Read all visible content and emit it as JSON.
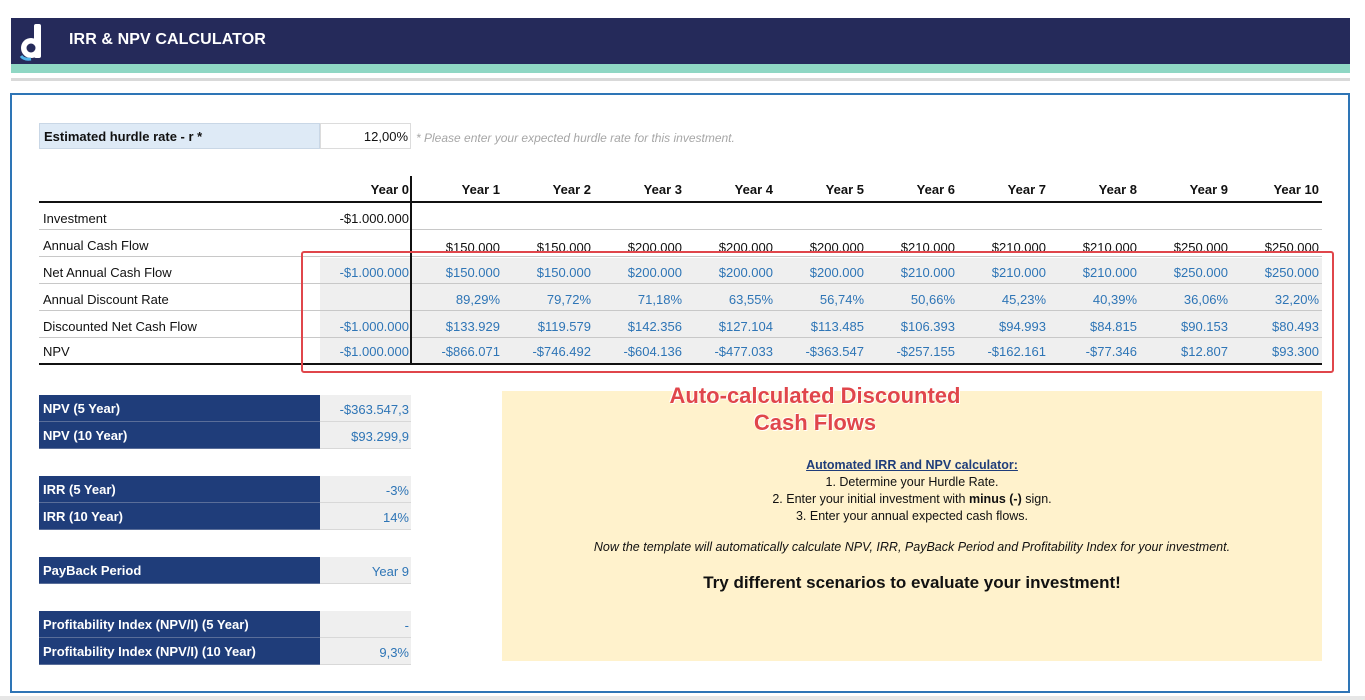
{
  "app": {
    "title": "IRR & NPV CALCULATOR",
    "logo_icon": "d-logo-icon"
  },
  "hurdle": {
    "label": "Estimated hurdle rate - r *",
    "value": "12,00%",
    "note": "* Please enter your expected hurdle rate for this investment."
  },
  "table": {
    "headers": [
      "Year 0",
      "Year 1",
      "Year 2",
      "Year 3",
      "Year 4",
      "Year 5",
      "Year 6",
      "Year 7",
      "Year 8",
      "Year 9",
      "Year 10"
    ],
    "rows": [
      {
        "label": "Investment",
        "values": [
          "-$1.000.000",
          "",
          "",
          "",
          "",
          "",
          "",
          "",
          "",
          "",
          ""
        ]
      },
      {
        "label": "Annual Cash Flow",
        "values": [
          "",
          "$150.000",
          "$150.000",
          "$200.000",
          "$200.000",
          "$200.000",
          "$210.000",
          "$210.000",
          "$210.000",
          "$250.000",
          "$250.000"
        ]
      },
      {
        "label": "Net Annual Cash Flow",
        "values": [
          "-$1.000.000",
          "$150.000",
          "$150.000",
          "$200.000",
          "$200.000",
          "$200.000",
          "$210.000",
          "$210.000",
          "$210.000",
          "$250.000",
          "$250.000"
        ]
      },
      {
        "label": "Annual Discount Rate",
        "values": [
          "",
          "89,29%",
          "79,72%",
          "71,18%",
          "63,55%",
          "56,74%",
          "50,66%",
          "45,23%",
          "40,39%",
          "36,06%",
          "32,20%"
        ]
      },
      {
        "label": "Discounted Net Cash Flow",
        "values": [
          "-$1.000.000",
          "$133.929",
          "$119.579",
          "$142.356",
          "$127.104",
          "$113.485",
          "$106.393",
          "$94.993",
          "$84.815",
          "$90.153",
          "$80.493"
        ]
      },
      {
        "label": "NPV",
        "values": [
          "-$1.000.000",
          "-$866.071",
          "-$746.492",
          "-$604.136",
          "-$477.033",
          "-$363.547",
          "-$257.155",
          "-$162.161",
          "-$77.346",
          "$12.807",
          "$93.300"
        ]
      }
    ]
  },
  "metrics": [
    {
      "label": "NPV (5 Year)",
      "value": "-$363.547,3"
    },
    {
      "label": "NPV (10 Year)",
      "value": "$93.299,9"
    },
    {
      "label": "IRR (5 Year)",
      "value": "-3%"
    },
    {
      "label": "IRR (10 Year)",
      "value": "14%"
    },
    {
      "label": "PayBack Period",
      "value": "Year 9"
    },
    {
      "label": "Profitability Index (NPV/I) (5 Year)",
      "value": "-"
    },
    {
      "label": "Profitability Index (NPV/I) (10 Year)",
      "value": "9,3%"
    }
  ],
  "annotation": {
    "line1": "Auto-calculated Discounted",
    "line2": "Cash Flows"
  },
  "instructions": {
    "title": "Automated IRR and NPV calculator:",
    "step1": "1. Determine your Hurdle Rate.",
    "step2_pre": "2. Enter your initial investment with ",
    "step2_bold": "minus (-)",
    "step2_post": " sign.",
    "step3": "3. Enter your annual expected cash flows.",
    "auto_note": "Now the template will automatically calculate NPV, IRR, PayBack Period and Profitability Index for your investment.",
    "cta": "Try different scenarios to evaluate your investment!"
  },
  "colors": {
    "header_bg": "#252a5a",
    "accent_stripe": "#8fd7c4",
    "metric_bg": "#1f3d7a",
    "value_blue": "#2e75b6",
    "highlight_red": "#e0464b",
    "note_bg": "#fff2cc"
  }
}
